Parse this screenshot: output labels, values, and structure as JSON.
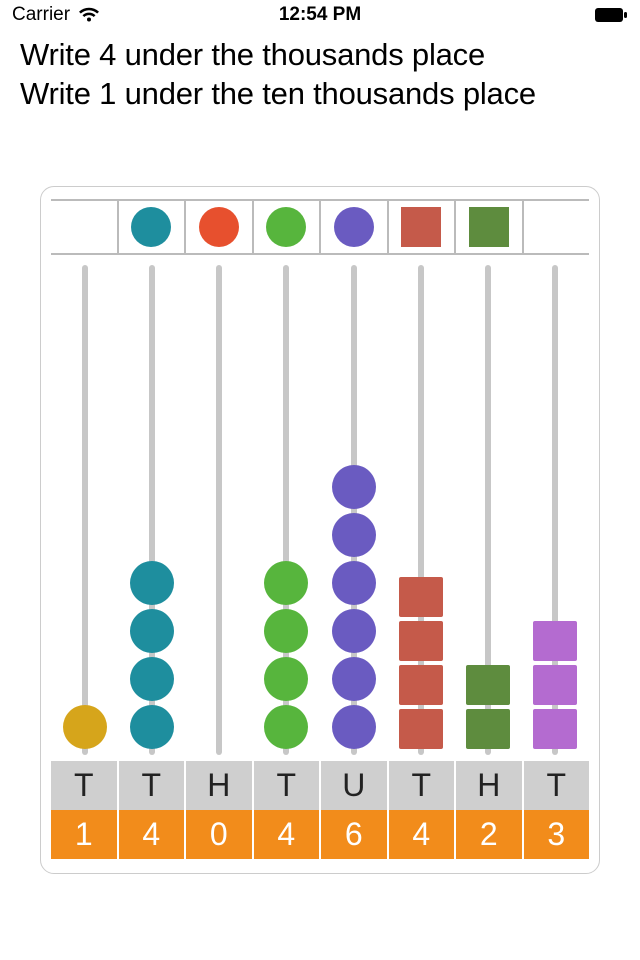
{
  "status_bar": {
    "carrier": "Carrier",
    "time": "12:54 PM"
  },
  "instructions": {
    "line1": "Write 4 under the thousands place",
    "line2": "Write 1 under the ten thousands place"
  },
  "colors": {
    "gold": "#d6a51b",
    "teal": "#1e8e9e",
    "red": "#e7502e",
    "green": "#57b53d",
    "purple": "#6a5bc1",
    "brick": "#c55a4a",
    "olive": "#5e8c3e",
    "lilac": "#b46bd0",
    "rod": "#c7c7c7",
    "label_bg": "#cfcfcf",
    "value_bg": "#f28c1b",
    "value_fg": "#ffffff"
  },
  "palette": [
    {
      "shape": "none"
    },
    {
      "shape": "circle",
      "color_key": "teal"
    },
    {
      "shape": "circle",
      "color_key": "red"
    },
    {
      "shape": "circle",
      "color_key": "green"
    },
    {
      "shape": "circle",
      "color_key": "purple"
    },
    {
      "shape": "square",
      "color_key": "brick"
    },
    {
      "shape": "square",
      "color_key": "olive"
    },
    {
      "shape": "none"
    }
  ],
  "columns": [
    {
      "label": "T",
      "value": "1",
      "shape": "circle",
      "color_key": "gold",
      "count": 1
    },
    {
      "label": "T",
      "value": "4",
      "shape": "circle",
      "color_key": "teal",
      "count": 4
    },
    {
      "label": "H",
      "value": "0",
      "shape": "circle",
      "color_key": "red",
      "count": 0
    },
    {
      "label": "T",
      "value": "4",
      "shape": "circle",
      "color_key": "green",
      "count": 4
    },
    {
      "label": "U",
      "value": "6",
      "shape": "circle",
      "color_key": "purple",
      "count": 6
    },
    {
      "label": "T",
      "value": "4",
      "shape": "square",
      "color_key": "brick",
      "count": 4
    },
    {
      "label": "H",
      "value": "2",
      "shape": "square",
      "color_key": "olive",
      "count": 2
    },
    {
      "label": "T",
      "value": "3",
      "shape": "square",
      "color_key": "lilac",
      "count": 3
    }
  ]
}
